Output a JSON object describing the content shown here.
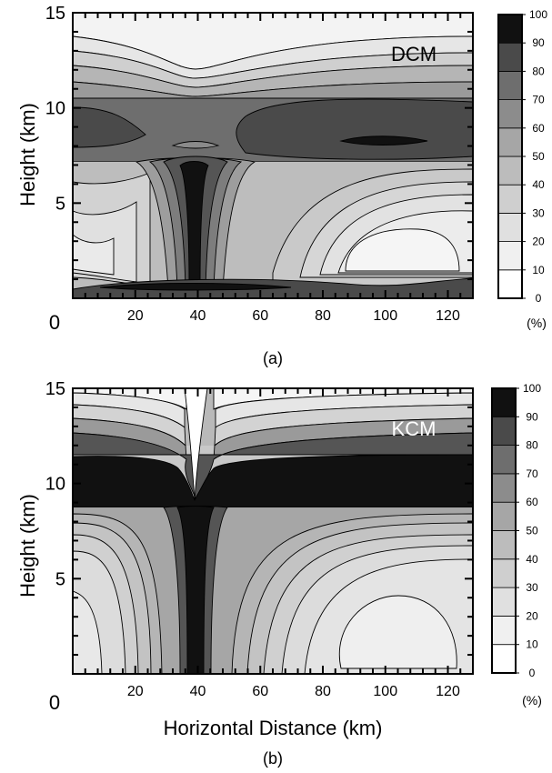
{
  "chart_data": [
    {
      "type": "heatmap",
      "panel": "(a)",
      "annotation": "DCM",
      "xlabel": "",
      "ylabel": "Height (km)",
      "x_ticks": [
        0,
        20,
        40,
        60,
        80,
        100,
        120
      ],
      "y_ticks": [
        5,
        10,
        15
      ],
      "xlim": [
        0,
        128
      ],
      "ylim": [
        0,
        15
      ],
      "colorbar_ticks": [
        0,
        10,
        20,
        30,
        40,
        50,
        60,
        70,
        80,
        90,
        100
      ],
      "colorbar_unit": "(%)",
      "z_levels": [
        0,
        10,
        20,
        30,
        40,
        50,
        60,
        70,
        80,
        90,
        100
      ]
    },
    {
      "type": "heatmap",
      "panel": "(b)",
      "annotation": "KCM",
      "xlabel": "Horizontal Distance (km)",
      "ylabel": "Height (km)",
      "x_ticks": [
        0,
        20,
        40,
        60,
        80,
        100,
        120
      ],
      "y_ticks": [
        5,
        10,
        15
      ],
      "xlim": [
        0,
        128
      ],
      "ylim": [
        0,
        15
      ],
      "colorbar_ticks": [
        0,
        10,
        20,
        30,
        40,
        50,
        60,
        70,
        80,
        90,
        100
      ],
      "colorbar_unit": "(%)",
      "z_levels": [
        0,
        10,
        20,
        30,
        40,
        50,
        60,
        70,
        80,
        90,
        100
      ]
    }
  ]
}
